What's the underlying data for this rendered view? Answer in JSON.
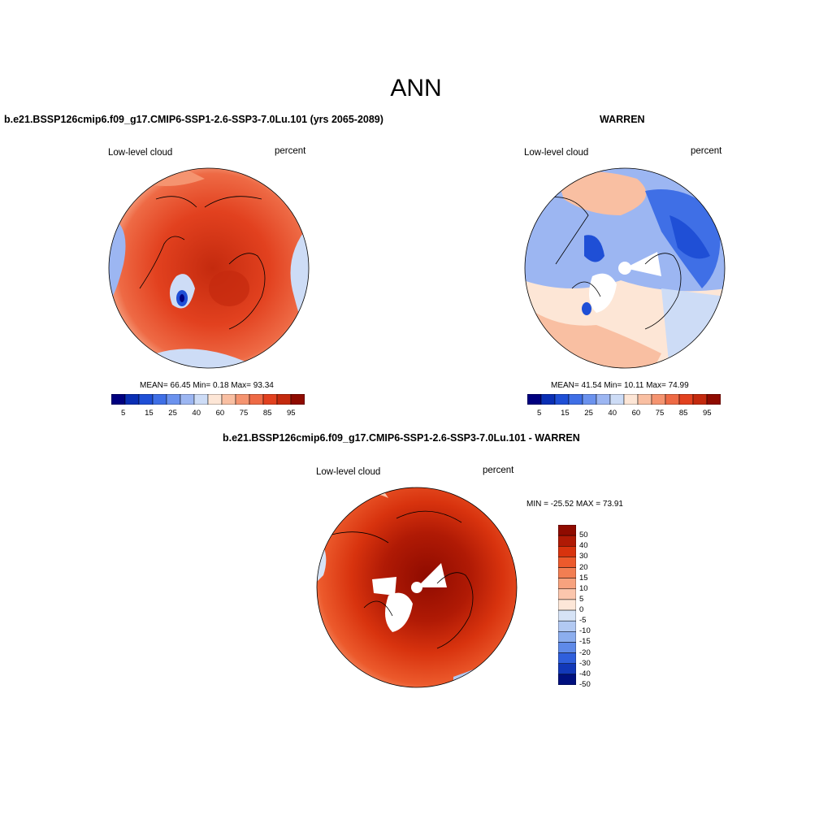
{
  "figure": {
    "title": "ANN"
  },
  "panels": [
    {
      "id": "model",
      "run_title": "b.e21.BSSP126cmip6.f09_g17.CMIP6-SSP1-2.6-SSP3-7.0Lu.101 (yrs 2065-2089)",
      "variable": "Low-level cloud",
      "units": "percent",
      "stats": "MEAN=  66.45  Min=   0.18  Max=  93.34",
      "colorbar_labels": [
        "5",
        "15",
        "25",
        "40",
        "60",
        "75",
        "85",
        "95"
      ]
    },
    {
      "id": "obs",
      "run_title": "WARREN",
      "variable": "Low-level cloud",
      "units": "percent",
      "stats": "MEAN=  41.54  Min=  10.11  Max=  74.99",
      "colorbar_labels": [
        "5",
        "15",
        "25",
        "40",
        "60",
        "75",
        "85",
        "95"
      ]
    },
    {
      "id": "diff",
      "run_title": "b.e21.BSSP126cmip6.f09_g17.CMIP6-SSP1-2.6-SSP3-7.0Lu.101 - WARREN",
      "variable": "Low-level cloud",
      "units": "percent",
      "stats": "MIN = -25.52 MAX =  73.91",
      "colorbar_labels": [
        "50",
        "40",
        "30",
        "20",
        "15",
        "10",
        "5",
        "0",
        "-5",
        "-10",
        "-15",
        "-20",
        "-30",
        "-40",
        "-50"
      ]
    }
  ],
  "colors": {
    "abs_scale": [
      "#00007f",
      "#0a2fb4",
      "#1f4fd6",
      "#3f6fe6",
      "#6b92ee",
      "#9cb6f2",
      "#cddcf6",
      "#fde6d6",
      "#f9bfa2",
      "#f59470",
      "#ee6a45",
      "#e2411f",
      "#c42a0e",
      "#8f0b00"
    ],
    "diff_scale": [
      "#8f0b00",
      "#b01a05",
      "#d8330e",
      "#ec5a2c",
      "#f27e52",
      "#f7a27e",
      "#fbc6ad",
      "#fde7d8",
      "#d6e3f6",
      "#b2c9f2",
      "#8caeee",
      "#5f8ae8",
      "#2f5fdc",
      "#1238b8",
      "#00107f"
    ]
  }
}
